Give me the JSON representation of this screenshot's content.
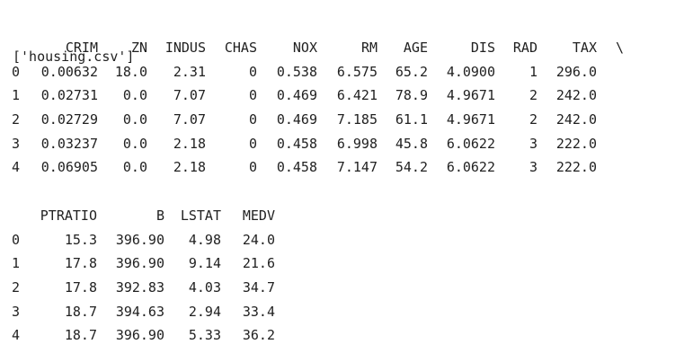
{
  "output": {
    "file_list_line": "['housing.csv']"
  },
  "table1": {
    "columns": [
      "CRIM",
      "ZN",
      "INDUS",
      "CHAS",
      "NOX",
      "RM",
      "AGE",
      "DIS",
      "RAD",
      "TAX"
    ],
    "continuation": "\\",
    "rows": [
      {
        "index": "0",
        "cells": [
          "0.00632",
          "18.0",
          "2.31",
          "0",
          "0.538",
          "6.575",
          "65.2",
          "4.0900",
          "1",
          "296.0"
        ]
      },
      {
        "index": "1",
        "cells": [
          "0.02731",
          "0.0",
          "7.07",
          "0",
          "0.469",
          "6.421",
          "78.9",
          "4.9671",
          "2",
          "242.0"
        ]
      },
      {
        "index": "2",
        "cells": [
          "0.02729",
          "0.0",
          "7.07",
          "0",
          "0.469",
          "7.185",
          "61.1",
          "4.9671",
          "2",
          "242.0"
        ]
      },
      {
        "index": "3",
        "cells": [
          "0.03237",
          "0.0",
          "2.18",
          "0",
          "0.458",
          "6.998",
          "45.8",
          "6.0622",
          "3",
          "222.0"
        ]
      },
      {
        "index": "4",
        "cells": [
          "0.06905",
          "0.0",
          "2.18",
          "0",
          "0.458",
          "7.147",
          "54.2",
          "6.0622",
          "3",
          "222.0"
        ]
      }
    ]
  },
  "table2": {
    "columns": [
      "PTRATIO",
      "B",
      "LSTAT",
      "MEDV"
    ],
    "rows": [
      {
        "index": "0",
        "cells": [
          "15.3",
          "396.90",
          "4.98",
          "24.0"
        ]
      },
      {
        "index": "1",
        "cells": [
          "17.8",
          "396.90",
          "9.14",
          "21.6"
        ]
      },
      {
        "index": "2",
        "cells": [
          "17.8",
          "392.83",
          "4.03",
          "34.7"
        ]
      },
      {
        "index": "3",
        "cells": [
          "18.7",
          "394.63",
          "2.94",
          "33.4"
        ]
      },
      {
        "index": "4",
        "cells": [
          "18.7",
          "396.90",
          "5.33",
          "36.2"
        ]
      }
    ]
  }
}
